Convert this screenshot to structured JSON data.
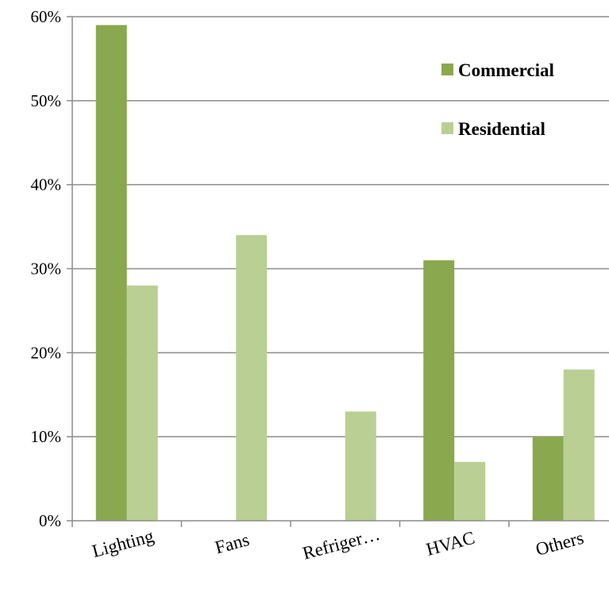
{
  "chart_data": {
    "type": "bar",
    "categories": [
      "Lighting",
      "Fans",
      "Refriger…",
      "HVAC",
      "Others"
    ],
    "series": [
      {
        "name": "Commercial",
        "color": "#8aa84e",
        "values": [
          59,
          0,
          0,
          31,
          10
        ]
      },
      {
        "name": "Residential",
        "color": "#b9cf93",
        "values": [
          28,
          34,
          13,
          7,
          18
        ]
      }
    ],
    "title": "",
    "xlabel": "",
    "ylabel": "",
    "ylim": [
      0,
      60
    ],
    "yticks": [
      "0%",
      "10%",
      "20%",
      "30%",
      "40%",
      "50%",
      "60%"
    ],
    "grid": true,
    "legend_position": "top-right"
  }
}
